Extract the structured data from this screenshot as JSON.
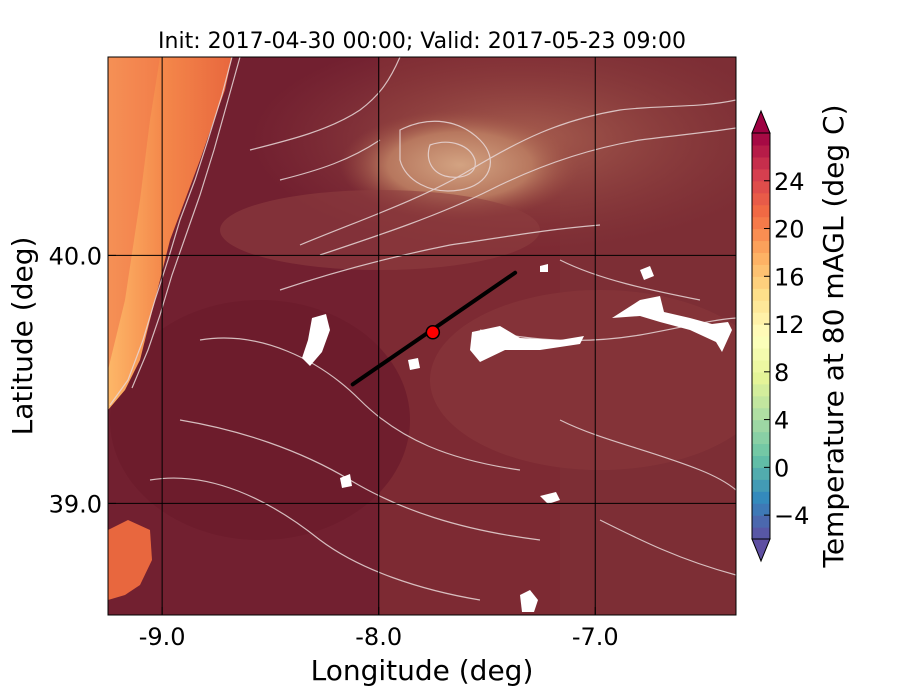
{
  "chart_data": {
    "type": "heatmap",
    "title": "Init: 2017-04-30 00:00; Valid: 2017-05-23 09:00",
    "xlabel": "Longitude (deg)",
    "ylabel": "Latitude (deg)",
    "xlim": [
      -9.25,
      -6.35
    ],
    "ylim": [
      38.55,
      40.8
    ],
    "x_ticks": [
      {
        "value": -9.0,
        "label": "-9.0"
      },
      {
        "value": -8.0,
        "label": "-8.0"
      },
      {
        "value": -7.0,
        "label": "-7.0"
      }
    ],
    "y_ticks": [
      {
        "value": 40.0,
        "label": "40.0"
      },
      {
        "value": 39.0,
        "label": "39.0"
      }
    ],
    "grid": true,
    "colorbar": {
      "label": "Temperature at 80 mAGL (deg C)",
      "range": [
        -6,
        28
      ],
      "extend": "both",
      "colormap": "Spectral_r",
      "ticks": [
        {
          "value": -4,
          "label": "−4"
        },
        {
          "value": 0,
          "label": "0"
        },
        {
          "value": 4,
          "label": "4"
        },
        {
          "value": 8,
          "label": "8"
        },
        {
          "value": 12,
          "label": "12"
        },
        {
          "value": 16,
          "label": "16"
        },
        {
          "value": 20,
          "label": "20"
        },
        {
          "value": 24,
          "label": "24"
        }
      ]
    },
    "cross_section_line": {
      "start": [
        -8.12,
        39.48
      ],
      "end": [
        -7.37,
        39.93
      ],
      "color": "#000000"
    },
    "marker": {
      "lon": -7.75,
      "lat": 39.69,
      "color": "#ff0000"
    },
    "colors": {
      "warm_interior": "#7a2232",
      "coast_warm": "#e8673e",
      "ocean_cool": "#fdb768",
      "contour_line": "#e8d8d8"
    }
  }
}
